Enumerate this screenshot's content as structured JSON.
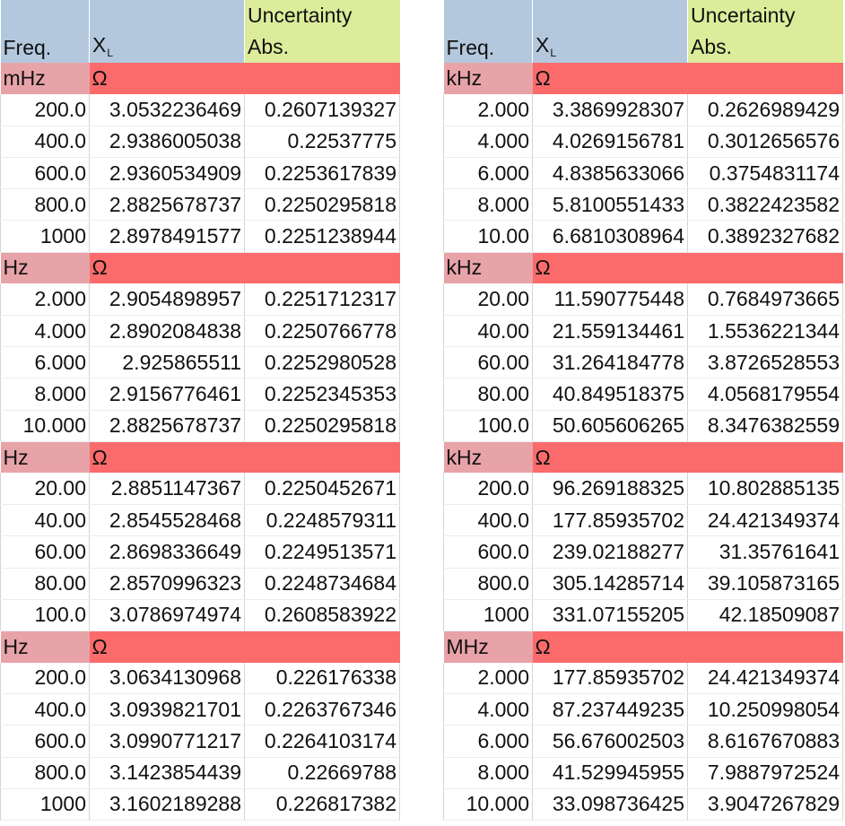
{
  "headers": {
    "freq": "Freq.",
    "xl_main": "X",
    "xl_sub": "L",
    "uncertainty": "Uncertainty",
    "abs": "Abs."
  },
  "colors": {
    "header_blue": "#b3c8dd",
    "header_green": "#dcec9b",
    "unit_pink": "#e8a3a8",
    "unit_red": "#fb6b6c"
  },
  "left": {
    "groups": [
      {
        "freq_unit": "mHz",
        "value_unit": "Ω",
        "rows": [
          [
            "200.0",
            "3.0532236469",
            "0.2607139327"
          ],
          [
            "400.0",
            "2.9386005038",
            "0.22537775"
          ],
          [
            "600.0",
            "2.9360534909",
            "0.2253617839"
          ],
          [
            "800.0",
            "2.8825678737",
            "0.2250295818"
          ],
          [
            "1000",
            "2.8978491577",
            "0.2251238944"
          ]
        ]
      },
      {
        "freq_unit": "Hz",
        "value_unit": "Ω",
        "rows": [
          [
            "2.000",
            "2.9054898957",
            "0.2251712317"
          ],
          [
            "4.000",
            "2.8902084838",
            "0.2250766778"
          ],
          [
            "6.000",
            "2.925865511",
            "0.2252980528"
          ],
          [
            "8.000",
            "2.9156776461",
            "0.2252345353"
          ],
          [
            "10.000",
            "2.8825678737",
            "0.2250295818"
          ]
        ]
      },
      {
        "freq_unit": "Hz",
        "value_unit": "Ω",
        "rows": [
          [
            "20.00",
            "2.8851147367",
            "0.2250452671"
          ],
          [
            "40.00",
            "2.8545528468",
            "0.2248579311"
          ],
          [
            "60.00",
            "2.8698336649",
            "0.2249513571"
          ],
          [
            "80.00",
            "2.8570996323",
            "0.2248734684"
          ],
          [
            "100.0",
            "3.0786974974",
            "0.2608583922"
          ]
        ]
      },
      {
        "freq_unit": "Hz",
        "value_unit": "Ω",
        "rows": [
          [
            "200.0",
            "3.0634130968",
            "0.226176338"
          ],
          [
            "400.0",
            "3.0939821701",
            "0.2263767346"
          ],
          [
            "600.0",
            "3.0990771217",
            "0.2264103174"
          ],
          [
            "800.0",
            "3.1423854439",
            "0.22669788"
          ],
          [
            "1000",
            "3.1602189288",
            "0.226817382"
          ]
        ]
      }
    ]
  },
  "right": {
    "groups": [
      {
        "freq_unit": "kHz",
        "value_unit": "Ω",
        "rows": [
          [
            "2.000",
            "3.3869928307",
            "0.2626989429"
          ],
          [
            "4.000",
            "4.0269156781",
            "0.3012656576"
          ],
          [
            "6.000",
            "4.8385633066",
            "0.3754831174"
          ],
          [
            "8.000",
            "5.8100551433",
            "0.3822423582"
          ],
          [
            "10.00",
            "6.6810308964",
            "0.3892327682"
          ]
        ]
      },
      {
        "freq_unit": "kHz",
        "value_unit": "Ω",
        "rows": [
          [
            "20.00",
            "11.590775448",
            "0.7684973665"
          ],
          [
            "40.00",
            "21.559134461",
            "1.5536221344"
          ],
          [
            "60.00",
            "31.264184778",
            "3.8726528553"
          ],
          [
            "80.00",
            "40.849518375",
            "4.0568179554"
          ],
          [
            "100.0",
            "50.605606265",
            "8.3476382559"
          ]
        ]
      },
      {
        "freq_unit": "kHz",
        "value_unit": "Ω",
        "rows": [
          [
            "200.0",
            "96.269188325",
            "10.802885135"
          ],
          [
            "400.0",
            "177.85935702",
            "24.421349374"
          ],
          [
            "600.0",
            "239.02188277",
            "31.35761641"
          ],
          [
            "800.0",
            "305.14285714",
            "39.105873165"
          ],
          [
            "1000",
            "331.07155205",
            "42.18509087"
          ]
        ]
      },
      {
        "freq_unit": "MHz",
        "value_unit": "Ω",
        "rows": [
          [
            "2.000",
            "177.85935702",
            "24.421349374"
          ],
          [
            "4.000",
            "87.237449235",
            "10.250998054"
          ],
          [
            "6.000",
            "56.676002503",
            "8.6167670883"
          ],
          [
            "8.000",
            "41.529945955",
            "7.9887972524"
          ],
          [
            "10.000",
            "33.098736425",
            "3.9047267829"
          ]
        ]
      }
    ]
  }
}
